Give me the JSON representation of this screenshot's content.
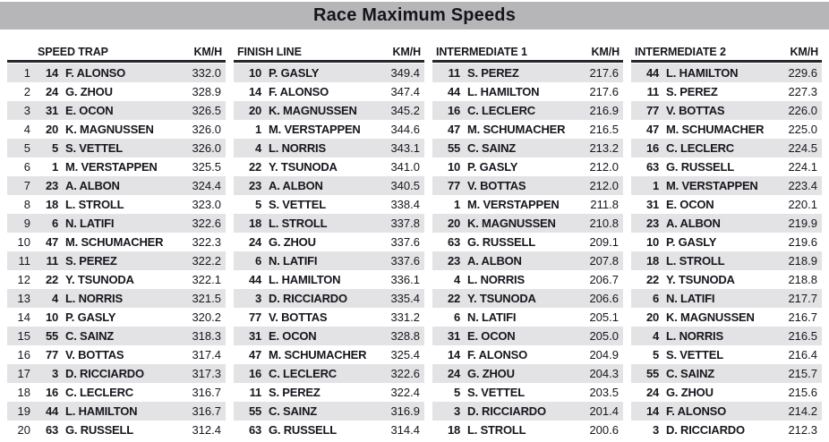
{
  "title": "Race Maximum Speeds",
  "colors": {
    "title_bar": "#b6b6b8",
    "row_stripe": "#e3e3e5",
    "text": "#16161e",
    "header_rule": "#27272e"
  },
  "columns": [
    {
      "label": "SPEED TRAP",
      "unit": "KM/H",
      "show_rank": true,
      "rows": [
        {
          "rank": 1,
          "car": 14,
          "driver": "F. ALONSO",
          "speed": "332.0"
        },
        {
          "rank": 2,
          "car": 24,
          "driver": "G. ZHOU",
          "speed": "328.9"
        },
        {
          "rank": 3,
          "car": 31,
          "driver": "E. OCON",
          "speed": "326.5"
        },
        {
          "rank": 4,
          "car": 20,
          "driver": "K. MAGNUSSEN",
          "speed": "326.0"
        },
        {
          "rank": 5,
          "car": 5,
          "driver": "S. VETTEL",
          "speed": "326.0"
        },
        {
          "rank": 6,
          "car": 1,
          "driver": "M. VERSTAPPEN",
          "speed": "325.5"
        },
        {
          "rank": 7,
          "car": 23,
          "driver": "A. ALBON",
          "speed": "324.4"
        },
        {
          "rank": 8,
          "car": 18,
          "driver": "L. STROLL",
          "speed": "323.0"
        },
        {
          "rank": 9,
          "car": 6,
          "driver": "N. LATIFI",
          "speed": "322.6"
        },
        {
          "rank": 10,
          "car": 47,
          "driver": "M. SCHUMACHER",
          "speed": "322.3"
        },
        {
          "rank": 11,
          "car": 11,
          "driver": "S. PEREZ",
          "speed": "322.2"
        },
        {
          "rank": 12,
          "car": 22,
          "driver": "Y. TSUNODA",
          "speed": "322.1"
        },
        {
          "rank": 13,
          "car": 4,
          "driver": "L. NORRIS",
          "speed": "321.5"
        },
        {
          "rank": 14,
          "car": 10,
          "driver": "P. GASLY",
          "speed": "320.2"
        },
        {
          "rank": 15,
          "car": 55,
          "driver": "C. SAINZ",
          "speed": "318.3"
        },
        {
          "rank": 16,
          "car": 77,
          "driver": "V. BOTTAS",
          "speed": "317.4"
        },
        {
          "rank": 17,
          "car": 3,
          "driver": "D. RICCIARDO",
          "speed": "317.3"
        },
        {
          "rank": 18,
          "car": 16,
          "driver": "C. LECLERC",
          "speed": "316.7"
        },
        {
          "rank": 19,
          "car": 44,
          "driver": "L. HAMILTON",
          "speed": "316.7"
        },
        {
          "rank": 20,
          "car": 63,
          "driver": "G. RUSSELL",
          "speed": "312.4"
        }
      ]
    },
    {
      "label": "FINISH LINE",
      "unit": "KM/H",
      "show_rank": false,
      "rows": [
        {
          "car": 10,
          "driver": "P. GASLY",
          "speed": "349.4"
        },
        {
          "car": 14,
          "driver": "F. ALONSO",
          "speed": "347.4"
        },
        {
          "car": 20,
          "driver": "K. MAGNUSSEN",
          "speed": "345.2"
        },
        {
          "car": 1,
          "driver": "M. VERSTAPPEN",
          "speed": "344.6"
        },
        {
          "car": 4,
          "driver": "L. NORRIS",
          "speed": "343.1"
        },
        {
          "car": 22,
          "driver": "Y. TSUNODA",
          "speed": "341.0"
        },
        {
          "car": 23,
          "driver": "A. ALBON",
          "speed": "340.5"
        },
        {
          "car": 5,
          "driver": "S. VETTEL",
          "speed": "338.4"
        },
        {
          "car": 18,
          "driver": "L. STROLL",
          "speed": "337.8"
        },
        {
          "car": 24,
          "driver": "G. ZHOU",
          "speed": "337.6"
        },
        {
          "car": 6,
          "driver": "N. LATIFI",
          "speed": "337.6"
        },
        {
          "car": 44,
          "driver": "L. HAMILTON",
          "speed": "336.1"
        },
        {
          "car": 3,
          "driver": "D. RICCIARDO",
          "speed": "335.4"
        },
        {
          "car": 77,
          "driver": "V. BOTTAS",
          "speed": "331.2"
        },
        {
          "car": 31,
          "driver": "E. OCON",
          "speed": "328.8"
        },
        {
          "car": 47,
          "driver": "M. SCHUMACHER",
          "speed": "325.4"
        },
        {
          "car": 16,
          "driver": "C. LECLERC",
          "speed": "322.6"
        },
        {
          "car": 11,
          "driver": "S. PEREZ",
          "speed": "322.4"
        },
        {
          "car": 55,
          "driver": "C. SAINZ",
          "speed": "316.9"
        },
        {
          "car": 63,
          "driver": "G. RUSSELL",
          "speed": "314.4"
        }
      ]
    },
    {
      "label": "INTERMEDIATE 1",
      "unit": "KM/H",
      "show_rank": false,
      "rows": [
        {
          "car": 11,
          "driver": "S. PEREZ",
          "speed": "217.6"
        },
        {
          "car": 44,
          "driver": "L. HAMILTON",
          "speed": "217.6"
        },
        {
          "car": 16,
          "driver": "C. LECLERC",
          "speed": "216.9"
        },
        {
          "car": 47,
          "driver": "M. SCHUMACHER",
          "speed": "216.5"
        },
        {
          "car": 55,
          "driver": "C. SAINZ",
          "speed": "213.2"
        },
        {
          "car": 10,
          "driver": "P. GASLY",
          "speed": "212.0"
        },
        {
          "car": 77,
          "driver": "V. BOTTAS",
          "speed": "212.0"
        },
        {
          "car": 1,
          "driver": "M. VERSTAPPEN",
          "speed": "211.8"
        },
        {
          "car": 20,
          "driver": "K. MAGNUSSEN",
          "speed": "210.8"
        },
        {
          "car": 63,
          "driver": "G. RUSSELL",
          "speed": "209.1"
        },
        {
          "car": 23,
          "driver": "A. ALBON",
          "speed": "207.8"
        },
        {
          "car": 4,
          "driver": "L. NORRIS",
          "speed": "206.7"
        },
        {
          "car": 22,
          "driver": "Y. TSUNODA",
          "speed": "206.6"
        },
        {
          "car": 6,
          "driver": "N. LATIFI",
          "speed": "205.1"
        },
        {
          "car": 31,
          "driver": "E. OCON",
          "speed": "205.0"
        },
        {
          "car": 14,
          "driver": "F. ALONSO",
          "speed": "204.9"
        },
        {
          "car": 24,
          "driver": "G. ZHOU",
          "speed": "204.3"
        },
        {
          "car": 5,
          "driver": "S. VETTEL",
          "speed": "203.5"
        },
        {
          "car": 3,
          "driver": "D. RICCIARDO",
          "speed": "201.4"
        },
        {
          "car": 18,
          "driver": "L. STROLL",
          "speed": "200.6"
        }
      ]
    },
    {
      "label": "INTERMEDIATE 2",
      "unit": "KM/H",
      "show_rank": false,
      "rows": [
        {
          "car": 44,
          "driver": "L. HAMILTON",
          "speed": "229.6"
        },
        {
          "car": 11,
          "driver": "S. PEREZ",
          "speed": "227.3"
        },
        {
          "car": 77,
          "driver": "V. BOTTAS",
          "speed": "226.0"
        },
        {
          "car": 47,
          "driver": "M. SCHUMACHER",
          "speed": "225.0"
        },
        {
          "car": 16,
          "driver": "C. LECLERC",
          "speed": "224.5"
        },
        {
          "car": 63,
          "driver": "G. RUSSELL",
          "speed": "224.1"
        },
        {
          "car": 1,
          "driver": "M. VERSTAPPEN",
          "speed": "223.4"
        },
        {
          "car": 31,
          "driver": "E. OCON",
          "speed": "220.1"
        },
        {
          "car": 23,
          "driver": "A. ALBON",
          "speed": "219.9"
        },
        {
          "car": 10,
          "driver": "P. GASLY",
          "speed": "219.6"
        },
        {
          "car": 18,
          "driver": "L. STROLL",
          "speed": "218.9"
        },
        {
          "car": 22,
          "driver": "Y. TSUNODA",
          "speed": "218.8"
        },
        {
          "car": 6,
          "driver": "N. LATIFI",
          "speed": "217.7"
        },
        {
          "car": 20,
          "driver": "K. MAGNUSSEN",
          "speed": "216.7"
        },
        {
          "car": 4,
          "driver": "L. NORRIS",
          "speed": "216.5"
        },
        {
          "car": 5,
          "driver": "S. VETTEL",
          "speed": "216.4"
        },
        {
          "car": 55,
          "driver": "C. SAINZ",
          "speed": "215.7"
        },
        {
          "car": 24,
          "driver": "G. ZHOU",
          "speed": "215.6"
        },
        {
          "car": 14,
          "driver": "F. ALONSO",
          "speed": "214.2"
        },
        {
          "car": 3,
          "driver": "D. RICCIARDO",
          "speed": "212.3"
        }
      ]
    }
  ]
}
